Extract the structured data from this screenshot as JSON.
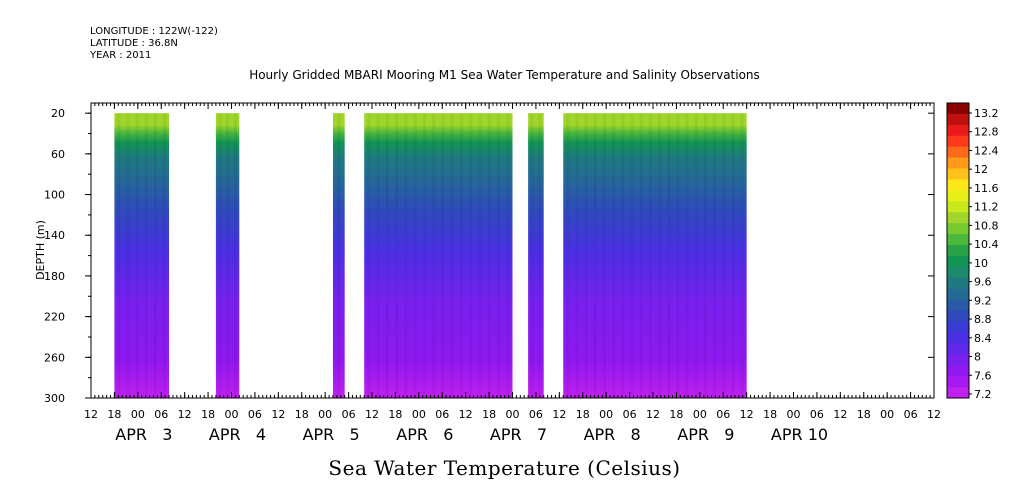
{
  "header": {
    "longitude": "LONGITUDE : 122W(-122)",
    "latitude": "LATITUDE : 36.8N",
    "year": "YEAR : 2011"
  },
  "chart_data": {
    "type": "heatmap",
    "title": "Hourly Gridded MBARI Mooring M1 Sea Water Temperature and Salinity Observations",
    "subtitle": "Sea Water Temperature (Celsius)",
    "ylabel": "DEPTH (m)",
    "xlabel": "",
    "ylim": [
      300,
      10
    ],
    "y_ticks": [
      20,
      60,
      100,
      140,
      180,
      220,
      260,
      300
    ],
    "x_hour_ticks": [
      "12",
      "18",
      "00",
      "06",
      "12",
      "18",
      "00",
      "06",
      "12",
      "18",
      "00",
      "06",
      "12",
      "18",
      "00",
      "06",
      "12",
      "18",
      "00",
      "06",
      "12",
      "18",
      "00",
      "06",
      "12",
      "18",
      "00",
      "06",
      "12",
      "18",
      "00",
      "06",
      "12",
      "18",
      "00",
      "06",
      "12"
    ],
    "date_labels": [
      {
        "label": "APR   3",
        "day": 3
      },
      {
        "label": "APR   4",
        "day": 4
      },
      {
        "label": "APR   5",
        "day": 5
      },
      {
        "label": "APR   6",
        "day": 6
      },
      {
        "label": "APR   7",
        "day": 7
      },
      {
        "label": "APR   8",
        "day": 8
      },
      {
        "label": "APR   9",
        "day": 9
      },
      {
        "label": "APR 10",
        "day": 10
      }
    ],
    "data_segments": [
      {
        "start": "APR 2 18:00",
        "end": "APR 3 08:00"
      },
      {
        "start": "APR 3 20:00",
        "end": "APR 4 02:00"
      },
      {
        "start": "APR 5 02:00",
        "end": "APR 5 05:00"
      },
      {
        "start": "APR 5 10:00",
        "end": "APR 7 00:00"
      },
      {
        "start": "APR 7 04:00",
        "end": "APR 7 08:00"
      },
      {
        "start": "APR 7 13:00",
        "end": "APR 9 12:00"
      }
    ],
    "colorbar": {
      "labels": [
        "13.2",
        "12.8",
        "12.4",
        "12",
        "11.6",
        "11.2",
        "10.8",
        "10.4",
        "10",
        "9.6",
        "9.2",
        "8.8",
        "8.4",
        "8",
        "7.6",
        "7.2"
      ],
      "colors": [
        "#8b0000",
        "#c01010",
        "#e81a1a",
        "#ff3a1a",
        "#ff6a1a",
        "#ff9a1a",
        "#ffc21a",
        "#ffe81a",
        "#e8f01a",
        "#c8e81a",
        "#a0d62a",
        "#78c830",
        "#4cb83c",
        "#2aa048",
        "#129455",
        "#1a8a6a",
        "#1e7a80",
        "#246b94",
        "#2a5aa8",
        "#304abe",
        "#3a3ad4",
        "#4a30e4",
        "#6028ec",
        "#7a20f0",
        "#9018f0",
        "#a818f0",
        "#c020f0"
      ]
    },
    "isotherm_depths": [
      {
        "temp": 11.0,
        "depth": 22
      },
      {
        "temp": 10.4,
        "depth": 30
      },
      {
        "temp": 10.0,
        "depth": 40
      },
      {
        "temp": 9.6,
        "depth": 55
      },
      {
        "temp": 9.2,
        "depth": 75
      },
      {
        "temp": 8.8,
        "depth": 110
      },
      {
        "temp": 8.4,
        "depth": 150
      },
      {
        "temp": 8.0,
        "depth": 205
      },
      {
        "temp": 7.6,
        "depth": 262
      },
      {
        "temp": 7.2,
        "depth": 300
      }
    ]
  }
}
